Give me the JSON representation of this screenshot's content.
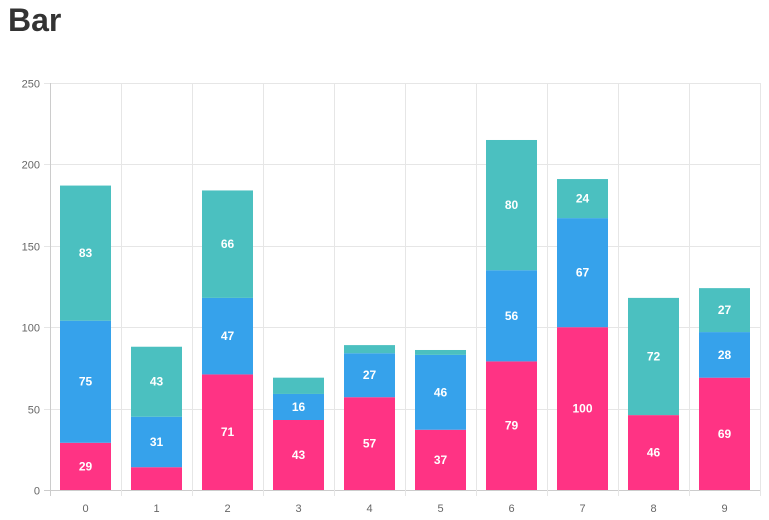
{
  "page": {
    "title": "Bar"
  },
  "chart_data": {
    "type": "bar",
    "stacked": true,
    "categories": [
      "0",
      "1",
      "2",
      "3",
      "4",
      "5",
      "6",
      "7",
      "8",
      "9"
    ],
    "series": [
      {
        "color": "#ff3384",
        "values": [
          29,
          14,
          71,
          43,
          57,
          37,
          79,
          100,
          46,
          69
        ],
        "labels": [
          "29",
          "",
          "71",
          "43",
          "57",
          "37",
          "79",
          "100",
          "46",
          "69"
        ]
      },
      {
        "color": "#36a2eb",
        "values": [
          75,
          31,
          47,
          16,
          27,
          46,
          56,
          67,
          0,
          28
        ],
        "labels": [
          "75",
          "31",
          "47",
          "16",
          "27",
          "46",
          "56",
          "67",
          "",
          "28"
        ]
      },
      {
        "color": "#4bc0c0",
        "values": [
          83,
          43,
          66,
          10,
          5,
          3,
          80,
          24,
          72,
          27
        ],
        "labels": [
          "83",
          "43",
          "66",
          "",
          "",
          "",
          "80",
          "24",
          "72",
          "27"
        ]
      }
    ],
    "ylim": [
      0,
      250
    ],
    "yticks": [
      0,
      50,
      100,
      150,
      200,
      250
    ],
    "grid": true,
    "legend": "none"
  }
}
